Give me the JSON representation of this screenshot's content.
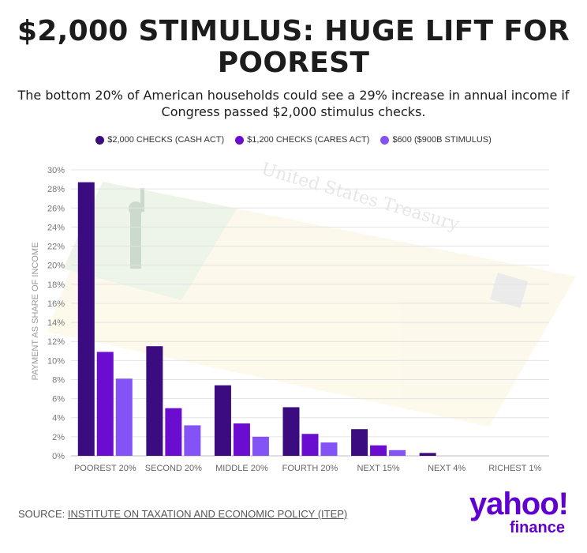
{
  "header": {
    "title": "$2,000 STIMULUS: HUGE LIFT FOR POOREST",
    "subtitle": "The bottom 20% of American households could see a 29% increase in annual income if Congress passed $2,000 stimulus checks."
  },
  "footer": {
    "source_prefix": "SOURCE: ",
    "source_link": "INSTITUTE ON TAXATION AND ECONOMIC POLICY (ITEP)"
  },
  "logo": {
    "line1": "yahoo!",
    "line2": "finance"
  },
  "colors": {
    "series1": "#3a0c80",
    "series2": "#6a0dd0",
    "series3": "#8453f5",
    "grid": "#e3e3e3"
  },
  "chart_data": {
    "type": "bar",
    "categories": [
      "POOREST 20%",
      "SECOND 20%",
      "MIDDLE 20%",
      "FOURTH 20%",
      "NEXT 15%",
      "NEXT 4%",
      "RICHEST 1%"
    ],
    "series": [
      {
        "name": "$2,000 CHECKS (CASH ACT)",
        "values": [
          28.7,
          11.5,
          7.4,
          5.1,
          2.8,
          0.3,
          0
        ]
      },
      {
        "name": "$1,200 CHECKS (CARES ACT)",
        "values": [
          10.9,
          5.0,
          3.4,
          2.3,
          1.1,
          0,
          0
        ]
      },
      {
        "name": "$600 ($900B STIMULUS)",
        "values": [
          8.1,
          3.2,
          2.0,
          1.4,
          0.6,
          0,
          0
        ]
      }
    ],
    "ylabel": "PAYMENT AS SHARE OF INCOME",
    "xlabel": "",
    "ylim": [
      0,
      30
    ],
    "yticks": [
      "0%",
      "2%",
      "4%",
      "6%",
      "8%",
      "10%",
      "12%",
      "14%",
      "16%",
      "18%",
      "20%",
      "22%",
      "24%",
      "26%",
      "28%",
      "30%"
    ],
    "grid": true,
    "legend_position": "top"
  }
}
